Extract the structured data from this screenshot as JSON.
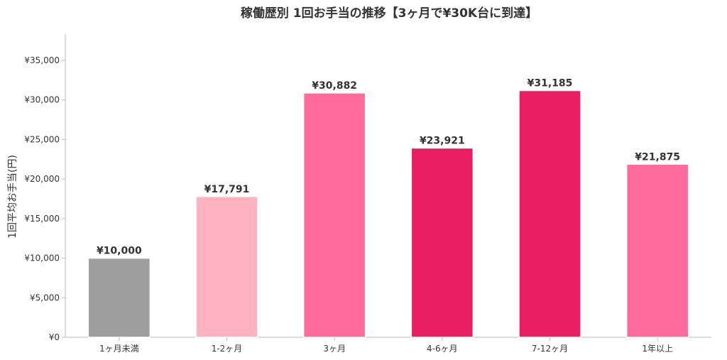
{
  "chart_data": {
    "type": "bar",
    "title": "稼働歴別 1回お手当の推移【3ヶ月で¥30K台に到達】",
    "xlabel": "",
    "ylabel": "1回平均お手当(円)",
    "categories": [
      "1ヶ月未満",
      "1-2ヶ月",
      "3ヶ月",
      "4-6ヶ月",
      "7-12ヶ月",
      "1年以上"
    ],
    "values": [
      10000,
      17791,
      30882,
      23921,
      31185,
      21875
    ],
    "value_labels": [
      "¥10,000",
      "¥17,791",
      "¥30,882",
      "¥23,921",
      "¥31,185",
      "¥21,875"
    ],
    "bar_colors": [
      "#9e9e9e",
      "#ffb3c1",
      "#ff6b9d",
      "#e91e63",
      "#e91e63",
      "#ff6b9d"
    ],
    "ylim": [
      0,
      35000
    ],
    "yticks": [
      0,
      5000,
      10000,
      15000,
      20000,
      25000,
      30000,
      35000
    ],
    "ytick_labels": [
      "¥0",
      "¥5,000",
      "¥10,000",
      "¥15,000",
      "¥20,000",
      "¥25,000",
      "¥30,000",
      "¥35,000"
    ],
    "grid": false,
    "legend": "none"
  }
}
